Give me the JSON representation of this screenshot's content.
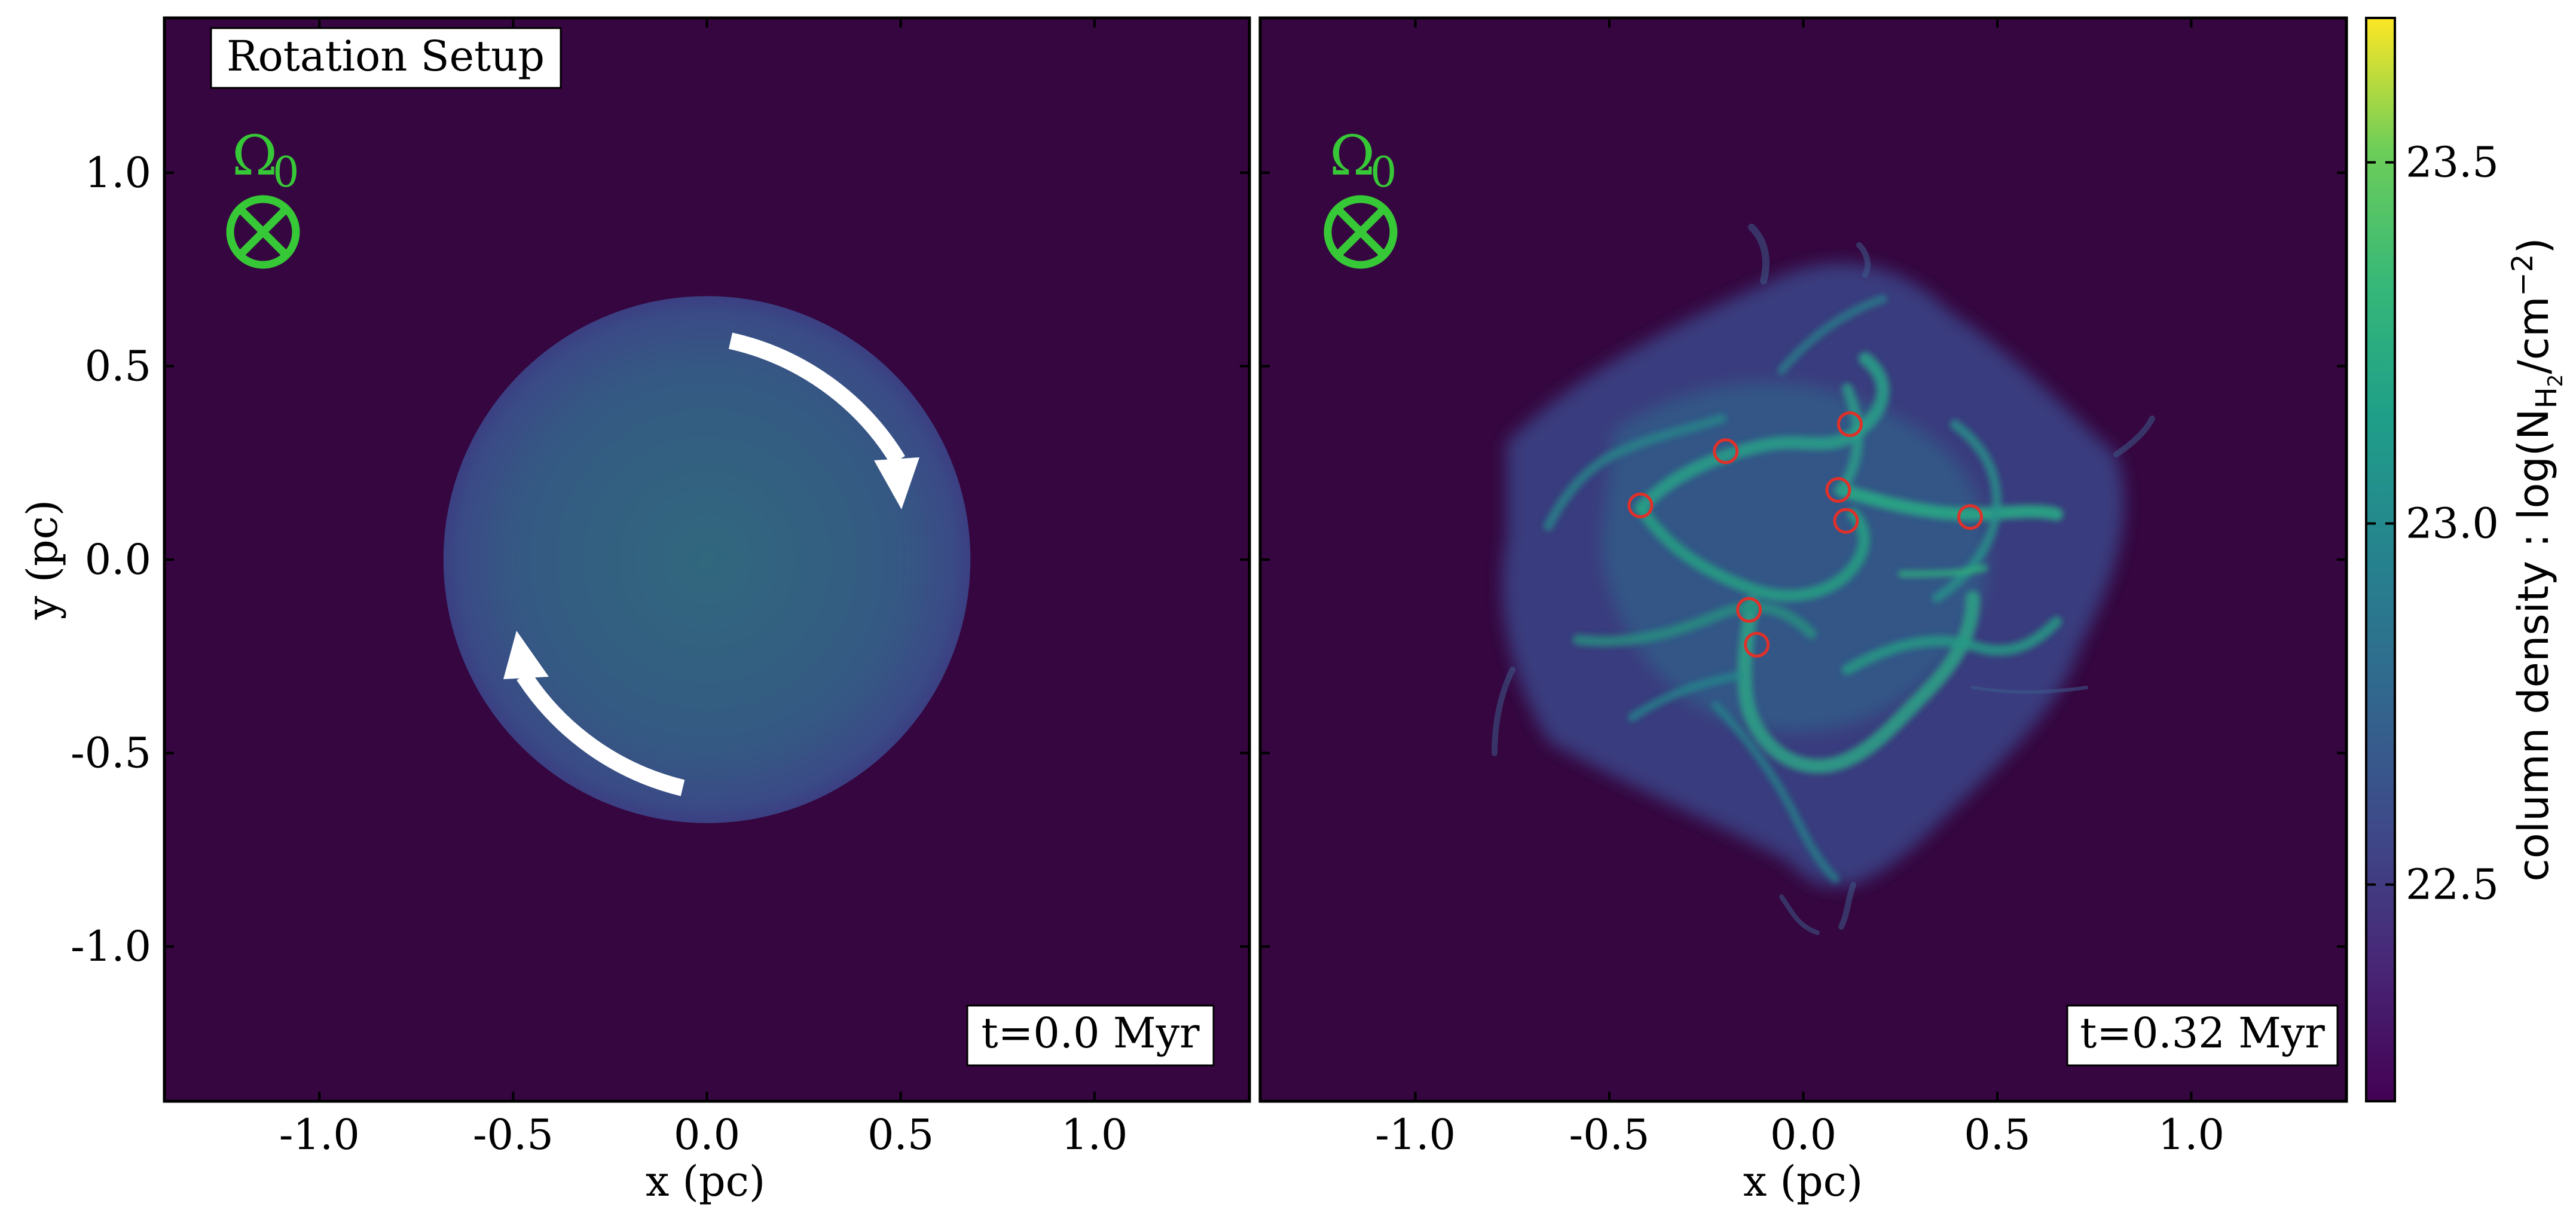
{
  "figure": {
    "left_panel": {
      "title_box": "Rotation Setup",
      "time_label": "t=0.0 Myr",
      "omega_symbol": "Ω",
      "omega_subscript": "0"
    },
    "right_panel": {
      "time_label": "t=0.32 Myr",
      "omega_symbol": "Ω",
      "omega_subscript": "0"
    },
    "colorbar": {
      "label_main": "column density : log(N",
      "label_sub": "H",
      "label_sub2": "2",
      "label_tail": "/cm",
      "label_sup": "−2",
      "label_close": ")",
      "ticks": [
        "22.5",
        "23.0",
        "23.5"
      ],
      "range": [
        22.2,
        23.7
      ],
      "colormap": "viridis"
    },
    "colors": {
      "background": "#35063f",
      "omega": "#37c837",
      "sink_circle": "#e0302a",
      "arrow": "#ffffff"
    }
  },
  "chart_data": [
    {
      "type": "heatmap",
      "title": "Rotation Setup",
      "annotation": "t=0.0 Myr",
      "xlabel": "x (pc)",
      "ylabel": "y (pc)",
      "xlim": [
        -1.4,
        1.4
      ],
      "ylim": [
        -1.4,
        1.4
      ],
      "xticks": [
        "-1.0",
        "-0.5",
        "0.0",
        "0.5",
        "1.0"
      ],
      "yticks": [
        "1.0",
        "0.5",
        "0.0",
        "-0.5",
        "-1.0"
      ],
      "yticks_values": [
        1.0,
        0.5,
        0.0,
        -0.5,
        -1.0
      ],
      "xticks_values": [
        -1.0,
        -0.5,
        0.0,
        0.5,
        1.0
      ],
      "sphere": {
        "center": [
          0.0,
          0.0
        ],
        "radius_pc": 0.68
      }
    },
    {
      "type": "heatmap",
      "annotation": "t=0.32 Myr",
      "xlabel": "x (pc)",
      "xlim": [
        -1.4,
        1.4
      ],
      "ylim": [
        -1.4,
        1.4
      ],
      "xticks": [
        "-1.0",
        "-0.5",
        "0.0",
        "0.5",
        "1.0"
      ],
      "xticks_values": [
        -1.0,
        -0.5,
        0.0,
        0.5,
        1.0
      ],
      "sink_particles": [
        {
          "x": -0.42,
          "y": 0.14
        },
        {
          "x": -0.2,
          "y": 0.28
        },
        {
          "x": 0.12,
          "y": 0.35
        },
        {
          "x": 0.09,
          "y": 0.18
        },
        {
          "x": 0.11,
          "y": 0.1
        },
        {
          "x": 0.43,
          "y": 0.11
        },
        {
          "x": -0.14,
          "y": -0.13
        },
        {
          "x": -0.12,
          "y": -0.22
        }
      ]
    }
  ]
}
